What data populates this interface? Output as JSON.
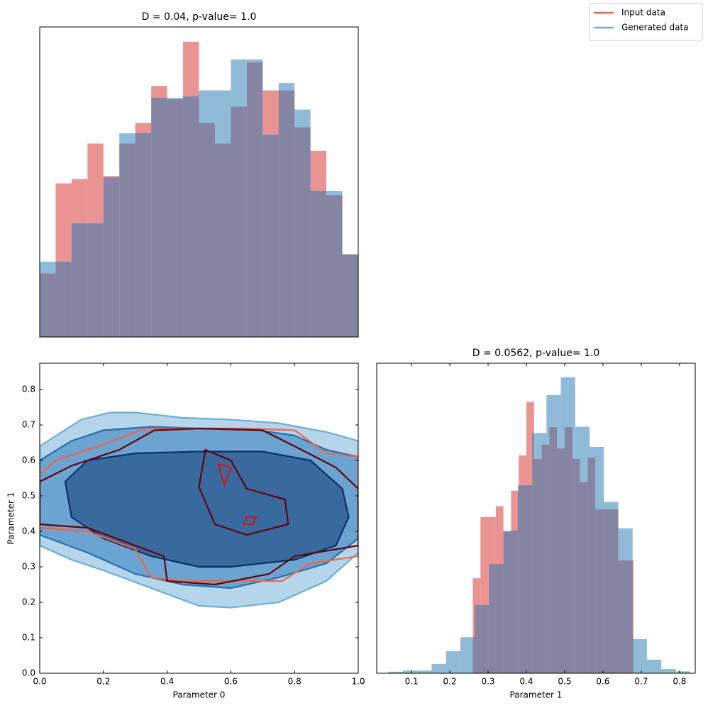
{
  "chart_data": [
    {
      "type": "histogram",
      "title": "D = 0.04, p-value= 1.0",
      "xlim": [
        0,
        1
      ],
      "ylim": [
        0,
        2.1
      ],
      "legend": "upper right",
      "series": [
        {
          "name": "Input data",
          "color": "#d62728",
          "legend_color": "#ef6548",
          "bins": [
            0,
            0.05,
            0.1,
            0.15,
            0.2,
            0.25,
            0.3,
            0.35,
            0.4,
            0.45,
            0.5,
            0.55,
            0.6,
            0.65,
            0.7,
            0.75,
            0.8,
            0.85,
            0.9,
            0.95,
            1
          ],
          "values": [
            0.43,
            1.04,
            1.07,
            1.31,
            1.09,
            1.31,
            1.45,
            1.7,
            1.61,
            2.0,
            1.45,
            1.31,
            1.56,
            1.86,
            1.67,
            1.67,
            1.42,
            1.26,
            0.96,
            0.56
          ]
        },
        {
          "name": "Generated data",
          "color": "#1f77b4",
          "legend_color": "#6baed6",
          "bins": [
            0,
            0.05,
            0.1,
            0.15,
            0.2,
            0.25,
            0.3,
            0.35,
            0.4,
            0.45,
            0.5,
            0.55,
            0.6,
            0.65,
            0.7,
            0.75,
            0.8,
            0.85,
            0.9,
            0.95,
            1
          ],
          "values": [
            0.51,
            0.51,
            0.77,
            0.77,
            1.08,
            1.38,
            1.38,
            1.62,
            1.62,
            1.63,
            1.67,
            1.67,
            1.88,
            1.88,
            1.37,
            1.72,
            1.54,
            0.99,
            0.99,
            0.56
          ]
        }
      ]
    },
    {
      "type": "contour",
      "xlabel": "Parameter 0",
      "ylabel": "Parameter 1",
      "xlim": [
        0,
        1
      ],
      "ylim": [
        0,
        0.874
      ],
      "xticks": [
        {
          "value": 0,
          "label": "0.0"
        },
        0.2,
        0.4,
        0.6,
        0.8,
        {
          "value": 1,
          "label": "1.0"
        }
      ],
      "yticks": [
        {
          "value": 0,
          "label": "0.0"
        },
        0.1,
        0.2,
        0.3,
        0.4,
        0.5,
        0.6,
        0.7,
        0.8
      ],
      "filled": [
        {
          "color": "#6baed6",
          "x": [
            0,
            0.13,
            0.22,
            0.3,
            0.45,
            0.6,
            0.75,
            0.9,
            1,
            1,
            0.9,
            0.75,
            0.6,
            0.5,
            0.35,
            0.2,
            0.1,
            0
          ],
          "y": [
            0.64,
            0.715,
            0.735,
            0.735,
            0.72,
            0.715,
            0.705,
            0.68,
            0.655,
            0.34,
            0.26,
            0.2,
            0.185,
            0.19,
            0.24,
            0.29,
            0.32,
            0.36
          ]
        },
        {
          "color": "#2171b5",
          "x": [
            0,
            0.1,
            0.2,
            0.35,
            0.5,
            0.65,
            0.8,
            0.9,
            1,
            1,
            0.9,
            0.75,
            0.6,
            0.45,
            0.3,
            0.15,
            0
          ],
          "y": [
            0.6,
            0.655,
            0.685,
            0.695,
            0.69,
            0.69,
            0.67,
            0.63,
            0.61,
            0.38,
            0.31,
            0.27,
            0.24,
            0.25,
            0.28,
            0.34,
            0.39
          ]
        },
        {
          "color": "#08306b",
          "x": [
            0.08,
            0.15,
            0.3,
            0.5,
            0.7,
            0.85,
            0.95,
            0.97,
            0.93,
            0.8,
            0.6,
            0.5,
            0.35,
            0.2,
            0.1,
            0.08
          ],
          "y": [
            0.54,
            0.6,
            0.62,
            0.625,
            0.625,
            0.6,
            0.52,
            0.44,
            0.36,
            0.32,
            0.3,
            0.3,
            0.33,
            0.38,
            0.44,
            0.54
          ]
        }
      ],
      "lines": [
        {
          "color": "#ef6548",
          "x": [
            0,
            0.05,
            0.2,
            0.33,
            0.5,
            0.65,
            0.8,
            0.9,
            1,
            1,
            0.85,
            0.76,
            0.6,
            0.45,
            0.35,
            0.3,
            0.15,
            0
          ],
          "y": [
            0.56,
            0.6,
            0.645,
            0.69,
            0.69,
            0.69,
            0.685,
            0.62,
            0.61,
            0.33,
            0.31,
            0.26,
            0.26,
            0.26,
            0.27,
            0.35,
            0.4,
            0.41
          ]
        },
        {
          "color": "#67000d",
          "x": [
            0,
            0.1,
            0.25,
            0.36,
            0.5,
            0.7,
            0.8,
            0.93,
            1,
            1,
            0.8,
            0.72,
            0.55,
            0.4,
            0.39,
            0.3,
            0.15,
            0
          ],
          "y": [
            0.54,
            0.585,
            0.63,
            0.685,
            0.69,
            0.685,
            0.64,
            0.58,
            0.52,
            0.36,
            0.33,
            0.28,
            0.25,
            0.26,
            0.33,
            0.36,
            0.41,
            0.42
          ]
        },
        {
          "color": "#67000d",
          "x": [
            0.5,
            0.52,
            0.6,
            0.65,
            0.77,
            0.78,
            0.65,
            0.55,
            0.5
          ],
          "y": [
            0.525,
            0.63,
            0.6,
            0.52,
            0.49,
            0.42,
            0.39,
            0.42,
            0.525
          ]
        },
        {
          "color": "#cb181d",
          "x": [
            0.56,
            0.6,
            0.58,
            0.56
          ],
          "y": [
            0.59,
            0.58,
            0.53,
            0.59
          ]
        },
        {
          "color": "#cb181d",
          "x": [
            0.65,
            0.68,
            0.67,
            0.64,
            0.65
          ],
          "y": [
            0.44,
            0.44,
            0.42,
            0.42,
            0.44
          ]
        }
      ]
    },
    {
      "type": "histogram",
      "title": "D = 0.0562, p-value= 1.0",
      "xlabel": "Parameter 1",
      "xlim": [
        0.009,
        0.841
      ],
      "ylim": [
        0,
        8
      ],
      "xticks": [
        0.1,
        0.2,
        0.3,
        0.4,
        0.5,
        0.6,
        0.7,
        0.8
      ],
      "series": [
        {
          "color": "#d62728",
          "bins": [
            0.26,
            0.28,
            0.3,
            0.32,
            0.34,
            0.36,
            0.38,
            0.4,
            0.42,
            0.44,
            0.46,
            0.48,
            0.5,
            0.52,
            0.54,
            0.56,
            0.58,
            0.6,
            0.62,
            0.64,
            0.66,
            0.68
          ],
          "values": [
            2.45,
            4.03,
            4.03,
            4.31,
            3.65,
            4.71,
            5.62,
            7.0,
            5.53,
            5.9,
            6.35,
            5.8,
            6.35,
            5.53,
            4.93,
            5.57,
            4.23,
            4.23,
            4.23,
            2.91,
            2.91
          ]
        },
        {
          "color": "#1f77b4",
          "bins": [
            0.04,
            0.0775,
            0.115,
            0.1525,
            0.19,
            0.2275,
            0.265,
            0.3025,
            0.34,
            0.3775,
            0.415,
            0.4525,
            0.49,
            0.5275,
            0.565,
            0.6025,
            0.64,
            0.6775,
            0.715,
            0.7525,
            0.79,
            0.8275
          ],
          "values": [
            0.04,
            0.07,
            0.07,
            0.24,
            0.57,
            0.93,
            1.76,
            2.82,
            3.68,
            4.85,
            6.2,
            7.18,
            7.64,
            6.36,
            5.84,
            4.42,
            3.74,
            0.88,
            0.35,
            0.11,
            0.05
          ]
        }
      ]
    }
  ]
}
